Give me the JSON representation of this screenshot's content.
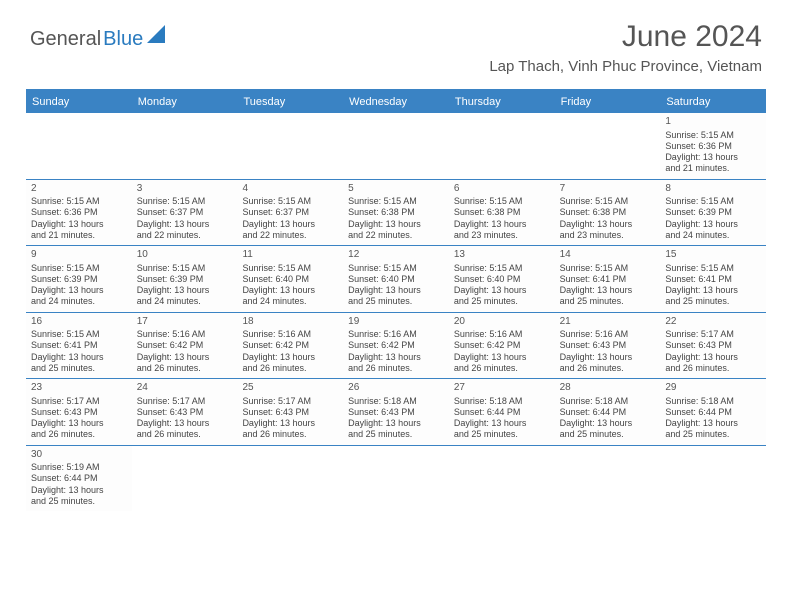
{
  "logo": {
    "part1": "General",
    "part2": "Blue"
  },
  "title": "June 2024",
  "location": "Lap Thach, Vinh Phuc Province, Vietnam",
  "colors": {
    "header_bg": "#3a83c4",
    "header_text": "#ffffff",
    "border": "#3a83c4",
    "text": "#444444",
    "title_color": "#555555"
  },
  "weekdays": [
    "Sunday",
    "Monday",
    "Tuesday",
    "Wednesday",
    "Thursday",
    "Friday",
    "Saturday"
  ],
  "weeks": [
    [
      {
        "empty": true
      },
      {
        "empty": true
      },
      {
        "empty": true
      },
      {
        "empty": true
      },
      {
        "empty": true
      },
      {
        "empty": true
      },
      {
        "num": "1",
        "sunrise": "Sunrise: 5:15 AM",
        "sunset": "Sunset: 6:36 PM",
        "d1": "Daylight: 13 hours",
        "d2": "and 21 minutes."
      }
    ],
    [
      {
        "num": "2",
        "sunrise": "Sunrise: 5:15 AM",
        "sunset": "Sunset: 6:36 PM",
        "d1": "Daylight: 13 hours",
        "d2": "and 21 minutes."
      },
      {
        "num": "3",
        "sunrise": "Sunrise: 5:15 AM",
        "sunset": "Sunset: 6:37 PM",
        "d1": "Daylight: 13 hours",
        "d2": "and 22 minutes."
      },
      {
        "num": "4",
        "sunrise": "Sunrise: 5:15 AM",
        "sunset": "Sunset: 6:37 PM",
        "d1": "Daylight: 13 hours",
        "d2": "and 22 minutes."
      },
      {
        "num": "5",
        "sunrise": "Sunrise: 5:15 AM",
        "sunset": "Sunset: 6:38 PM",
        "d1": "Daylight: 13 hours",
        "d2": "and 22 minutes."
      },
      {
        "num": "6",
        "sunrise": "Sunrise: 5:15 AM",
        "sunset": "Sunset: 6:38 PM",
        "d1": "Daylight: 13 hours",
        "d2": "and 23 minutes."
      },
      {
        "num": "7",
        "sunrise": "Sunrise: 5:15 AM",
        "sunset": "Sunset: 6:38 PM",
        "d1": "Daylight: 13 hours",
        "d2": "and 23 minutes."
      },
      {
        "num": "8",
        "sunrise": "Sunrise: 5:15 AM",
        "sunset": "Sunset: 6:39 PM",
        "d1": "Daylight: 13 hours",
        "d2": "and 24 minutes."
      }
    ],
    [
      {
        "num": "9",
        "sunrise": "Sunrise: 5:15 AM",
        "sunset": "Sunset: 6:39 PM",
        "d1": "Daylight: 13 hours",
        "d2": "and 24 minutes."
      },
      {
        "num": "10",
        "sunrise": "Sunrise: 5:15 AM",
        "sunset": "Sunset: 6:39 PM",
        "d1": "Daylight: 13 hours",
        "d2": "and 24 minutes."
      },
      {
        "num": "11",
        "sunrise": "Sunrise: 5:15 AM",
        "sunset": "Sunset: 6:40 PM",
        "d1": "Daylight: 13 hours",
        "d2": "and 24 minutes."
      },
      {
        "num": "12",
        "sunrise": "Sunrise: 5:15 AM",
        "sunset": "Sunset: 6:40 PM",
        "d1": "Daylight: 13 hours",
        "d2": "and 25 minutes."
      },
      {
        "num": "13",
        "sunrise": "Sunrise: 5:15 AM",
        "sunset": "Sunset: 6:40 PM",
        "d1": "Daylight: 13 hours",
        "d2": "and 25 minutes."
      },
      {
        "num": "14",
        "sunrise": "Sunrise: 5:15 AM",
        "sunset": "Sunset: 6:41 PM",
        "d1": "Daylight: 13 hours",
        "d2": "and 25 minutes."
      },
      {
        "num": "15",
        "sunrise": "Sunrise: 5:15 AM",
        "sunset": "Sunset: 6:41 PM",
        "d1": "Daylight: 13 hours",
        "d2": "and 25 minutes."
      }
    ],
    [
      {
        "num": "16",
        "sunrise": "Sunrise: 5:15 AM",
        "sunset": "Sunset: 6:41 PM",
        "d1": "Daylight: 13 hours",
        "d2": "and 25 minutes."
      },
      {
        "num": "17",
        "sunrise": "Sunrise: 5:16 AM",
        "sunset": "Sunset: 6:42 PM",
        "d1": "Daylight: 13 hours",
        "d2": "and 26 minutes."
      },
      {
        "num": "18",
        "sunrise": "Sunrise: 5:16 AM",
        "sunset": "Sunset: 6:42 PM",
        "d1": "Daylight: 13 hours",
        "d2": "and 26 minutes."
      },
      {
        "num": "19",
        "sunrise": "Sunrise: 5:16 AM",
        "sunset": "Sunset: 6:42 PM",
        "d1": "Daylight: 13 hours",
        "d2": "and 26 minutes."
      },
      {
        "num": "20",
        "sunrise": "Sunrise: 5:16 AM",
        "sunset": "Sunset: 6:42 PM",
        "d1": "Daylight: 13 hours",
        "d2": "and 26 minutes."
      },
      {
        "num": "21",
        "sunrise": "Sunrise: 5:16 AM",
        "sunset": "Sunset: 6:43 PM",
        "d1": "Daylight: 13 hours",
        "d2": "and 26 minutes."
      },
      {
        "num": "22",
        "sunrise": "Sunrise: 5:17 AM",
        "sunset": "Sunset: 6:43 PM",
        "d1": "Daylight: 13 hours",
        "d2": "and 26 minutes."
      }
    ],
    [
      {
        "num": "23",
        "sunrise": "Sunrise: 5:17 AM",
        "sunset": "Sunset: 6:43 PM",
        "d1": "Daylight: 13 hours",
        "d2": "and 26 minutes."
      },
      {
        "num": "24",
        "sunrise": "Sunrise: 5:17 AM",
        "sunset": "Sunset: 6:43 PM",
        "d1": "Daylight: 13 hours",
        "d2": "and 26 minutes."
      },
      {
        "num": "25",
        "sunrise": "Sunrise: 5:17 AM",
        "sunset": "Sunset: 6:43 PM",
        "d1": "Daylight: 13 hours",
        "d2": "and 26 minutes."
      },
      {
        "num": "26",
        "sunrise": "Sunrise: 5:18 AM",
        "sunset": "Sunset: 6:43 PM",
        "d1": "Daylight: 13 hours",
        "d2": "and 25 minutes."
      },
      {
        "num": "27",
        "sunrise": "Sunrise: 5:18 AM",
        "sunset": "Sunset: 6:44 PM",
        "d1": "Daylight: 13 hours",
        "d2": "and 25 minutes."
      },
      {
        "num": "28",
        "sunrise": "Sunrise: 5:18 AM",
        "sunset": "Sunset: 6:44 PM",
        "d1": "Daylight: 13 hours",
        "d2": "and 25 minutes."
      },
      {
        "num": "29",
        "sunrise": "Sunrise: 5:18 AM",
        "sunset": "Sunset: 6:44 PM",
        "d1": "Daylight: 13 hours",
        "d2": "and 25 minutes."
      }
    ],
    [
      {
        "num": "30",
        "sunrise": "Sunrise: 5:19 AM",
        "sunset": "Sunset: 6:44 PM",
        "d1": "Daylight: 13 hours",
        "d2": "and 25 minutes."
      },
      {
        "empty": true
      },
      {
        "empty": true
      },
      {
        "empty": true
      },
      {
        "empty": true
      },
      {
        "empty": true
      },
      {
        "empty": true
      }
    ]
  ]
}
